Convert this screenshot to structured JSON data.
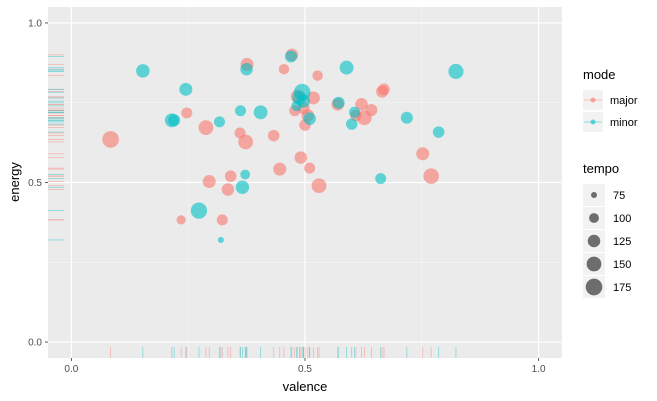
{
  "chart_data": {
    "type": "scatter",
    "xlabel": "valence",
    "ylabel": "energy",
    "xlim": [
      -0.05,
      1.05
    ],
    "ylim": [
      -0.05,
      1.05
    ],
    "x_ticks": [
      "0.0",
      "0.5",
      "1.0"
    ],
    "y_ticks": [
      "0.0",
      "0.5",
      "1.0"
    ],
    "grid": true,
    "rug": true,
    "legend_position": "right",
    "legend_mode": {
      "title": "mode",
      "entries": [
        {
          "label": "major",
          "color": "#F8766D"
        },
        {
          "label": "minor",
          "color": "#00BFC4"
        }
      ]
    },
    "legend_tempo": {
      "title": "tempo",
      "entries": [
        {
          "label": "75",
          "value": 75
        },
        {
          "label": "100",
          "value": 100
        },
        {
          "label": "125",
          "value": 125
        },
        {
          "label": "150",
          "value": 150
        },
        {
          "label": "175",
          "value": 175
        }
      ]
    },
    "series": [
      {
        "name": "major",
        "color": "#F8766D",
        "points": [
          {
            "x": 0.084,
            "y": 0.635,
            "tempo": 175
          },
          {
            "x": 0.235,
            "y": 0.383,
            "tempo": 95
          },
          {
            "x": 0.247,
            "y": 0.718,
            "tempo": 110
          },
          {
            "x": 0.288,
            "y": 0.672,
            "tempo": 150
          },
          {
            "x": 0.295,
            "y": 0.503,
            "tempo": 130
          },
          {
            "x": 0.323,
            "y": 0.383,
            "tempo": 110
          },
          {
            "x": 0.335,
            "y": 0.478,
            "tempo": 125
          },
          {
            "x": 0.341,
            "y": 0.52,
            "tempo": 115
          },
          {
            "x": 0.361,
            "y": 0.655,
            "tempo": 110
          },
          {
            "x": 0.373,
            "y": 0.627,
            "tempo": 150
          },
          {
            "x": 0.376,
            "y": 0.87,
            "tempo": 130
          },
          {
            "x": 0.433,
            "y": 0.647,
            "tempo": 115
          },
          {
            "x": 0.446,
            "y": 0.542,
            "tempo": 130
          },
          {
            "x": 0.455,
            "y": 0.855,
            "tempo": 105
          },
          {
            "x": 0.472,
            "y": 0.9,
            "tempo": 125
          },
          {
            "x": 0.478,
            "y": 0.725,
            "tempo": 110
          },
          {
            "x": 0.484,
            "y": 0.77,
            "tempo": 135
          },
          {
            "x": 0.491,
            "y": 0.578,
            "tempo": 125
          },
          {
            "x": 0.497,
            "y": 0.733,
            "tempo": 120
          },
          {
            "x": 0.5,
            "y": 0.68,
            "tempo": 115
          },
          {
            "x": 0.506,
            "y": 0.71,
            "tempo": 125
          },
          {
            "x": 0.51,
            "y": 0.545,
            "tempo": 110
          },
          {
            "x": 0.518,
            "y": 0.765,
            "tempo": 130
          },
          {
            "x": 0.527,
            "y": 0.835,
            "tempo": 105
          },
          {
            "x": 0.53,
            "y": 0.49,
            "tempo": 150
          },
          {
            "x": 0.57,
            "y": 0.745,
            "tempo": 125
          },
          {
            "x": 0.609,
            "y": 0.71,
            "tempo": 115
          },
          {
            "x": 0.621,
            "y": 0.745,
            "tempo": 125
          },
          {
            "x": 0.627,
            "y": 0.703,
            "tempo": 150
          },
          {
            "x": 0.642,
            "y": 0.727,
            "tempo": 120
          },
          {
            "x": 0.665,
            "y": 0.785,
            "tempo": 120
          },
          {
            "x": 0.669,
            "y": 0.792,
            "tempo": 115
          },
          {
            "x": 0.752,
            "y": 0.59,
            "tempo": 130
          },
          {
            "x": 0.77,
            "y": 0.52,
            "tempo": 160
          }
        ]
      },
      {
        "name": "minor",
        "color": "#00BFC4",
        "points": [
          {
            "x": 0.153,
            "y": 0.85,
            "tempo": 135
          },
          {
            "x": 0.215,
            "y": 0.695,
            "tempo": 140
          },
          {
            "x": 0.22,
            "y": 0.695,
            "tempo": 120
          },
          {
            "x": 0.245,
            "y": 0.792,
            "tempo": 130
          },
          {
            "x": 0.273,
            "y": 0.412,
            "tempo": 170
          },
          {
            "x": 0.317,
            "y": 0.69,
            "tempo": 110
          },
          {
            "x": 0.32,
            "y": 0.32,
            "tempo": 75
          },
          {
            "x": 0.362,
            "y": 0.725,
            "tempo": 110
          },
          {
            "x": 0.366,
            "y": 0.485,
            "tempo": 135
          },
          {
            "x": 0.372,
            "y": 0.525,
            "tempo": 100
          },
          {
            "x": 0.375,
            "y": 0.855,
            "tempo": 125
          },
          {
            "x": 0.405,
            "y": 0.72,
            "tempo": 140
          },
          {
            "x": 0.47,
            "y": 0.895,
            "tempo": 120
          },
          {
            "x": 0.482,
            "y": 0.74,
            "tempo": 105
          },
          {
            "x": 0.488,
            "y": 0.765,
            "tempo": 140
          },
          {
            "x": 0.494,
            "y": 0.783,
            "tempo": 175
          },
          {
            "x": 0.497,
            "y": 0.755,
            "tempo": 130
          },
          {
            "x": 0.51,
            "y": 0.7,
            "tempo": 125
          },
          {
            "x": 0.572,
            "y": 0.75,
            "tempo": 120
          },
          {
            "x": 0.589,
            "y": 0.86,
            "tempo": 140
          },
          {
            "x": 0.6,
            "y": 0.683,
            "tempo": 115
          },
          {
            "x": 0.606,
            "y": 0.72,
            "tempo": 110
          },
          {
            "x": 0.662,
            "y": 0.512,
            "tempo": 110
          },
          {
            "x": 0.718,
            "y": 0.703,
            "tempo": 120
          },
          {
            "x": 0.786,
            "y": 0.658,
            "tempo": 115
          },
          {
            "x": 0.823,
            "y": 0.848,
            "tempo": 155
          }
        ]
      }
    ]
  }
}
